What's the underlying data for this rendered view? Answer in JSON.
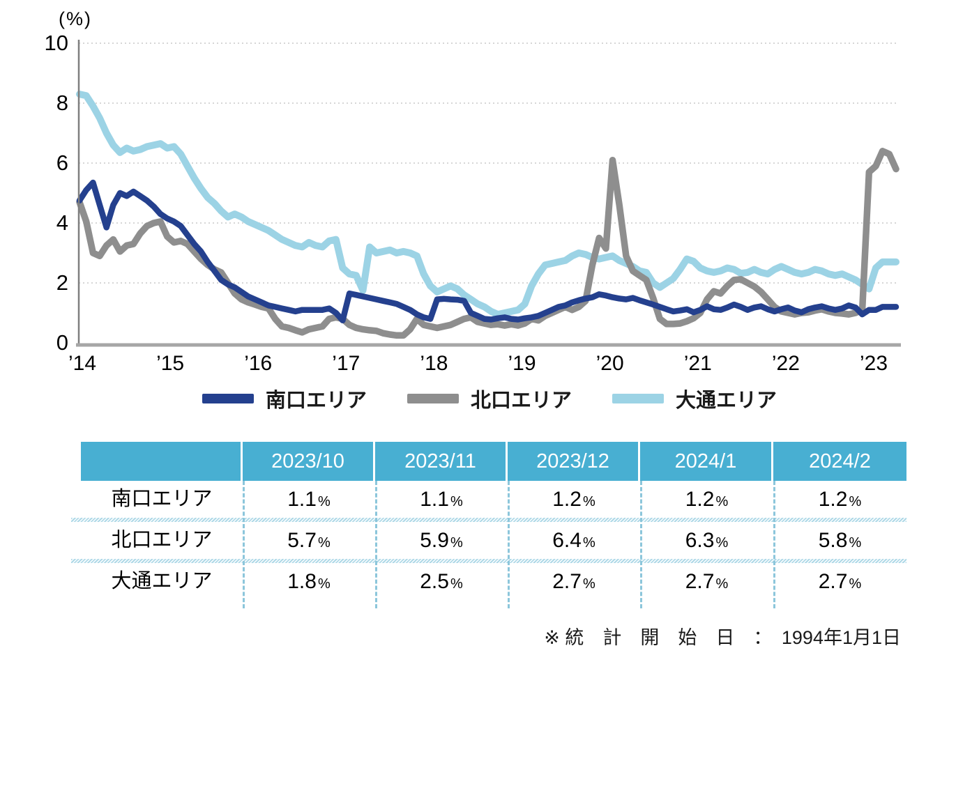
{
  "page": {
    "background": "#FFFFFF"
  },
  "chart_data": {
    "type": "line",
    "unit_label": "(%)",
    "x_range": {
      "start": "2014-01",
      "end": "2024-02",
      "points_per_year": 12
    },
    "x_tick_labels": [
      "’14",
      "’15",
      "’16",
      "’17",
      "’18",
      "’19",
      "’20",
      "’21",
      "’22",
      "’23"
    ],
    "y_ticks": [
      0,
      2,
      4,
      6,
      8,
      10
    ],
    "ylim": [
      0,
      10
    ],
    "grid": "dotted-horizontal",
    "legend_position": "bottom",
    "series": [
      {
        "name": "南口エリア",
        "color": "#24408E",
        "values": [
          4.75,
          5.1,
          5.35,
          4.6,
          3.85,
          4.6,
          5.0,
          4.9,
          5.05,
          4.9,
          4.75,
          4.55,
          4.3,
          4.15,
          4.05,
          3.9,
          3.6,
          3.3,
          3.05,
          2.7,
          2.4,
          2.1,
          1.95,
          1.85,
          1.7,
          1.55,
          1.45,
          1.35,
          1.25,
          1.2,
          1.15,
          1.1,
          1.05,
          1.1,
          1.1,
          1.1,
          1.1,
          1.15,
          1.0,
          0.75,
          1.65,
          1.6,
          1.55,
          1.5,
          1.45,
          1.4,
          1.35,
          1.3,
          1.2,
          1.1,
          0.95,
          0.85,
          0.8,
          1.45,
          1.47,
          1.45,
          1.44,
          1.4,
          1.0,
          0.9,
          0.8,
          0.78,
          0.82,
          0.85,
          0.8,
          0.78,
          0.82,
          0.85,
          0.9,
          1.0,
          1.1,
          1.2,
          1.25,
          1.35,
          1.42,
          1.48,
          1.52,
          1.62,
          1.58,
          1.52,
          1.48,
          1.45,
          1.5,
          1.42,
          1.35,
          1.28,
          1.2,
          1.12,
          1.05,
          1.08,
          1.12,
          1.02,
          1.1,
          1.22,
          1.12,
          1.1,
          1.18,
          1.28,
          1.2,
          1.1,
          1.18,
          1.22,
          1.12,
          1.05,
          1.12,
          1.18,
          1.08,
          1.02,
          1.12,
          1.18,
          1.22,
          1.15,
          1.1,
          1.15,
          1.25,
          1.18,
          0.95,
          1.1,
          1.1,
          1.2,
          1.2,
          1.2
        ]
      },
      {
        "name": "北口エリア",
        "color": "#8E8E8E",
        "values": [
          4.7,
          4.05,
          3.0,
          2.9,
          3.25,
          3.45,
          3.05,
          3.25,
          3.3,
          3.65,
          3.9,
          4.0,
          4.05,
          3.55,
          3.35,
          3.4,
          3.3,
          3.05,
          2.8,
          2.6,
          2.45,
          2.35,
          2.0,
          1.65,
          1.45,
          1.35,
          1.28,
          1.2,
          1.15,
          0.8,
          0.55,
          0.5,
          0.42,
          0.35,
          0.45,
          0.5,
          0.55,
          0.8,
          0.85,
          0.8,
          0.6,
          0.5,
          0.45,
          0.42,
          0.4,
          0.32,
          0.28,
          0.25,
          0.25,
          0.45,
          0.8,
          0.6,
          0.55,
          0.5,
          0.55,
          0.6,
          0.7,
          0.8,
          0.85,
          0.7,
          0.65,
          0.6,
          0.62,
          0.58,
          0.62,
          0.58,
          0.65,
          0.8,
          0.75,
          0.9,
          1.0,
          1.1,
          1.2,
          1.1,
          1.2,
          1.4,
          2.6,
          3.5,
          3.15,
          6.1,
          4.6,
          2.9,
          2.4,
          2.25,
          2.1,
          1.5,
          0.8,
          0.63,
          0.63,
          0.65,
          0.72,
          0.82,
          1.0,
          1.45,
          1.72,
          1.65,
          1.9,
          2.1,
          2.12,
          2.0,
          1.88,
          1.7,
          1.45,
          1.2,
          1.05,
          1.0,
          0.95,
          1.0,
          1.02,
          1.08,
          1.12,
          1.05,
          1.0,
          0.98,
          0.95,
          1.0,
          1.1,
          5.7,
          5.9,
          6.4,
          6.3,
          5.8
        ]
      },
      {
        "name": "大通エリア",
        "color": "#9CD3E5",
        "values": [
          8.3,
          8.25,
          7.9,
          7.5,
          7.0,
          6.6,
          6.35,
          6.5,
          6.4,
          6.45,
          6.55,
          6.6,
          6.65,
          6.5,
          6.55,
          6.3,
          5.9,
          5.5,
          5.15,
          4.85,
          4.65,
          4.4,
          4.2,
          4.3,
          4.2,
          4.05,
          3.95,
          3.85,
          3.75,
          3.6,
          3.45,
          3.35,
          3.25,
          3.2,
          3.35,
          3.25,
          3.2,
          3.4,
          3.45,
          2.5,
          2.3,
          2.25,
          1.75,
          3.2,
          3.0,
          3.05,
          3.1,
          3.0,
          3.05,
          3.0,
          2.9,
          2.3,
          1.9,
          1.7,
          1.8,
          1.9,
          1.8,
          1.6,
          1.45,
          1.3,
          1.2,
          1.05,
          0.95,
          1.0,
          1.05,
          1.1,
          1.3,
          1.9,
          2.3,
          2.6,
          2.65,
          2.7,
          2.75,
          2.9,
          3.0,
          2.95,
          2.85,
          2.8,
          2.85,
          2.9,
          2.75,
          2.65,
          2.55,
          2.4,
          2.35,
          2.0,
          1.85,
          2.0,
          2.15,
          2.45,
          2.8,
          2.72,
          2.5,
          2.4,
          2.35,
          2.4,
          2.5,
          2.45,
          2.32,
          2.35,
          2.45,
          2.35,
          2.3,
          2.45,
          2.55,
          2.45,
          2.35,
          2.3,
          2.35,
          2.45,
          2.4,
          2.3,
          2.25,
          2.3,
          2.2,
          2.1,
          1.95,
          1.8,
          2.5,
          2.7,
          2.7,
          2.7
        ]
      }
    ]
  },
  "table": {
    "corner_label": "",
    "columns": [
      "2023/10",
      "2023/11",
      "2023/12",
      "2024/1",
      "2024/2"
    ],
    "rows": [
      {
        "label": "南口エリア",
        "values": [
          "1.1",
          "1.1",
          "1.2",
          "1.2",
          "1.2"
        ],
        "unit": "%"
      },
      {
        "label": "北口エリア",
        "values": [
          "5.7",
          "5.9",
          "6.4",
          "6.3",
          "5.8"
        ],
        "unit": "%"
      },
      {
        "label": "大通エリア",
        "values": [
          "1.8",
          "2.5",
          "2.7",
          "2.7",
          "2.7"
        ],
        "unit": "%"
      }
    ],
    "style": {
      "header_bg": "#48AFD2",
      "header_text": "#FFFFFF",
      "separator_color": "#8CC6DB"
    }
  },
  "footnote": "※ 統　計　開　始　日　：　1994年1月1日",
  "colors": {
    "grid": "#C9C9C9",
    "axis": "#7F7F7F",
    "baseline": "#A6A6A6"
  }
}
